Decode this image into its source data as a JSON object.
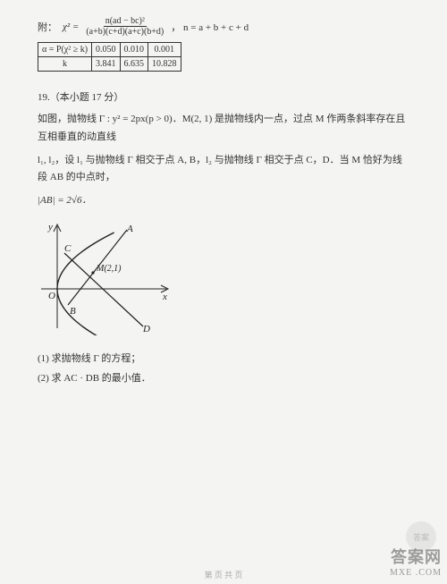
{
  "formula": {
    "prefix": "附：",
    "lhs": "χ² =",
    "num": "n(ad − bc)²",
    "den": "(a+b)(c+d)(a+c)(b+d)",
    "tail": "，  n = a + b + c + d"
  },
  "table": {
    "row1": [
      "α = P(χ² ≥ k)",
      "0.050",
      "0.010",
      "0.001"
    ],
    "row2": [
      "k",
      "3.841",
      "6.635",
      "10.828"
    ]
  },
  "q19": {
    "head": "19.（本小题 17 分）",
    "p1": "如图，抛物线 Γ : y² = 2px(p > 0)．M(2, 1) 是抛物线内一点，过点 M 作两条斜率存在且互相垂直的动直线",
    "p2": "l₁, l₂，设 l₁ 与抛物线 Γ 相交于点 A, B，l₂ 与抛物线 Γ 相交于点 C，D．当 M 恰好为线段 AB 的中点时，",
    "p3": "|AB| = 2√6．",
    "sub1": "(1) 求抛物线 Γ 的方程；",
    "sub2": "(2) 求 AC · DB 的最小值．",
    "vec_note_left": "→",
    "vec_note_right": "→"
  },
  "figure": {
    "width": 150,
    "height": 130,
    "bg": "#f4f4f2",
    "stroke": "#222",
    "labels": {
      "y": "y",
      "x": "x",
      "O": "O",
      "A": "A",
      "B": "B",
      "C": "C",
      "D": "D",
      "M": "M(2,1)"
    }
  },
  "watermark": {
    "circle": "答案",
    "top": "答案网",
    "bot": "MXE .COM"
  },
  "footer": "第  页  共  页"
}
